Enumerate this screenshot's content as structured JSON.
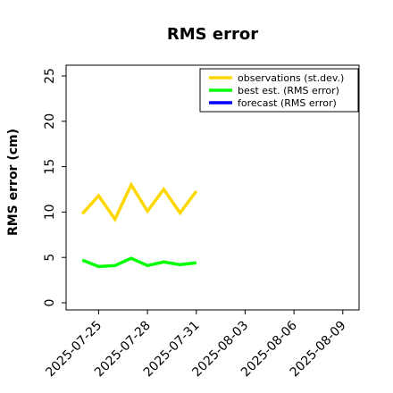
{
  "chart_data": {
    "type": "line",
    "title": "RMS error",
    "xlabel": "",
    "ylabel": "RMS error (cm)",
    "x_ticks": [
      "2025-07-25",
      "2025-07-28",
      "2025-07-31",
      "2025-08-03",
      "2025-08-06",
      "2025-08-09"
    ],
    "highlight_tick": "2025-07-31",
    "highlight_color": "#228b22",
    "xlim": [
      "2025-07-23",
      "2025-08-10"
    ],
    "ylim": [
      0,
      25
    ],
    "y_ticks": [
      0,
      5,
      10,
      15,
      20,
      25
    ],
    "legend_position": "top-right",
    "grid": false,
    "series": [
      {
        "name": "observations (st.dev.)",
        "color": "#ffd700",
        "x": [
          "2025-07-24",
          "2025-07-25",
          "2025-07-26",
          "2025-07-27",
          "2025-07-28",
          "2025-07-29",
          "2025-07-30",
          "2025-07-31"
        ],
        "values": [
          9.8,
          11.8,
          9.2,
          13.0,
          10.1,
          12.5,
          9.9,
          12.3
        ]
      },
      {
        "name": "best est. (RMS error)",
        "color": "#00ff00",
        "x": [
          "2025-07-24",
          "2025-07-25",
          "2025-07-26",
          "2025-07-27",
          "2025-07-28",
          "2025-07-29",
          "2025-07-30",
          "2025-07-31"
        ],
        "values": [
          4.7,
          4.0,
          4.1,
          4.9,
          4.1,
          4.5,
          4.2,
          4.4
        ]
      },
      {
        "name": "forecast (RMS error)",
        "color": "#0000ff",
        "x": [],
        "values": []
      }
    ]
  }
}
